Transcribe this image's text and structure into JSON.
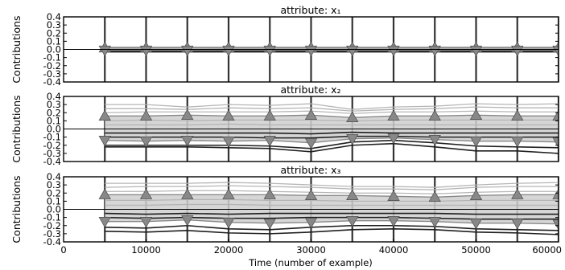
{
  "chart_data": {
    "type": "line",
    "xlabel": "Time (number of example)",
    "x_ticks": [
      0,
      10000,
      20000,
      30000,
      40000,
      50000,
      60000
    ],
    "xlim": [
      0,
      60000
    ],
    "y_ticks": [
      "0.4",
      "0.3",
      "0.2",
      "0.1",
      "0.0",
      "-0.1",
      "-0.2",
      "-0.3",
      "-0.4"
    ],
    "ylim": [
      -0.4,
      0.4
    ],
    "vertical_lines_x": [
      5000,
      10000,
      15000,
      20000,
      25000,
      30000,
      35000,
      40000,
      45000,
      50000,
      55000,
      60000
    ],
    "x": [
      5000,
      10000,
      15000,
      20000,
      25000,
      30000,
      35000,
      40000,
      45000,
      50000,
      55000,
      60000
    ],
    "grid": false,
    "panels": [
      {
        "title": "attribute: x₁",
        "ylabel": "Contributions",
        "series": [
          {
            "role": "gray",
            "values": [
              0.03,
              0.03,
              0.03,
              0.03,
              0.03,
              0.03,
              0.03,
              0.03,
              0.03,
              0.03,
              0.03,
              0.03
            ]
          },
          {
            "role": "gray",
            "values": [
              0.02,
              0.02,
              0.02,
              0.02,
              0.02,
              0.02,
              0.02,
              0.02,
              0.02,
              0.02,
              0.02,
              0.02
            ]
          },
          {
            "role": "gray",
            "values": [
              0.01,
              0.01,
              0.015,
              0.01,
              0.01,
              0.01,
              0.01,
              0.01,
              0.01,
              0.01,
              0.01,
              0.01
            ]
          },
          {
            "role": "gray",
            "values": [
              -0.01,
              -0.01,
              -0.01,
              -0.01,
              -0.01,
              -0.01,
              -0.01,
              -0.01,
              -0.01,
              -0.01,
              -0.01,
              -0.01
            ]
          },
          {
            "role": "gray",
            "values": [
              -0.02,
              -0.02,
              -0.02,
              -0.02,
              -0.02,
              -0.02,
              -0.02,
              -0.02,
              -0.02,
              -0.02,
              -0.02,
              -0.02
            ]
          },
          {
            "role": "dark",
            "values": [
              -0.03,
              -0.03,
              -0.03,
              -0.03,
              -0.03,
              -0.03,
              -0.03,
              -0.03,
              -0.03,
              -0.03,
              -0.03,
              -0.03
            ]
          },
          {
            "role": "dark",
            "values": [
              -0.02,
              -0.02,
              -0.02,
              -0.02,
              -0.02,
              -0.02,
              -0.02,
              -0.02,
              -0.02,
              -0.02,
              -0.02,
              -0.02
            ]
          }
        ],
        "band_upper": {
          "values": [
            0.02,
            0.02,
            0.02,
            0.02,
            0.02,
            0.02,
            0.02,
            0.02,
            0.02,
            0.02,
            0.02,
            0.02
          ],
          "marker": "up"
        },
        "band_lower": {
          "values": [
            -0.01,
            -0.01,
            -0.01,
            -0.01,
            -0.01,
            -0.01,
            -0.01,
            -0.01,
            -0.01,
            -0.01,
            -0.01,
            -0.01
          ],
          "marker": "down"
        }
      },
      {
        "title": "attribute: x₂",
        "ylabel": "Contributions",
        "series": [
          {
            "role": "gray",
            "values": [
              0.3,
              0.3,
              0.27,
              0.3,
              0.29,
              0.31,
              0.24,
              0.27,
              0.28,
              0.31,
              0.3,
              0.31
            ]
          },
          {
            "role": "gray",
            "values": [
              0.25,
              0.25,
              0.24,
              0.26,
              0.25,
              0.26,
              0.22,
              0.24,
              0.25,
              0.27,
              0.26,
              0.26
            ]
          },
          {
            "role": "gray",
            "values": [
              0.2,
              0.21,
              0.21,
              0.21,
              0.21,
              0.22,
              0.19,
              0.21,
              0.21,
              0.22,
              0.21,
              0.21
            ]
          },
          {
            "role": "gray",
            "values": [
              0.1,
              0.11,
              0.1,
              0.11,
              0.11,
              0.11,
              0.1,
              0.11,
              0.11,
              0.11,
              0.11,
              0.11
            ]
          },
          {
            "role": "gray",
            "values": [
              0.05,
              0.05,
              0.05,
              0.06,
              0.05,
              0.05,
              0.05,
              0.05,
              0.05,
              0.05,
              0.05,
              0.05
            ]
          },
          {
            "role": "dark",
            "values": [
              -0.05,
              -0.05,
              -0.05,
              -0.05,
              -0.05,
              -0.06,
              -0.04,
              -0.05,
              -0.05,
              -0.05,
              -0.05,
              -0.05
            ]
          },
          {
            "role": "dark",
            "values": [
              -0.1,
              -0.1,
              -0.1,
              -0.1,
              -0.11,
              -0.11,
              -0.09,
              -0.09,
              -0.1,
              -0.1,
              -0.1,
              -0.1
            ]
          },
          {
            "role": "dark",
            "values": [
              -0.2,
              -0.2,
              -0.2,
              -0.2,
              -0.21,
              -0.24,
              -0.16,
              -0.14,
              -0.17,
              -0.21,
              -0.22,
              -0.23
            ]
          },
          {
            "role": "dark",
            "values": [
              -0.22,
              -0.22,
              -0.22,
              -0.23,
              -0.24,
              -0.28,
              -0.2,
              -0.18,
              -0.22,
              -0.27,
              -0.27,
              -0.3
            ]
          }
        ],
        "band_upper": {
          "values": [
            0.16,
            0.16,
            0.17,
            0.16,
            0.16,
            0.17,
            0.14,
            0.16,
            0.16,
            0.17,
            0.16,
            0.16
          ],
          "marker": "up"
        },
        "band_lower": {
          "values": [
            -0.14,
            -0.15,
            -0.14,
            -0.15,
            -0.14,
            -0.17,
            -0.12,
            -0.11,
            -0.13,
            -0.15,
            -0.15,
            -0.16
          ],
          "marker": "down"
        }
      },
      {
        "title": "attribute: x₃",
        "ylabel": "Contributions",
        "series": [
          {
            "role": "gray",
            "values": [
              0.32,
              0.32,
              0.32,
              0.33,
              0.32,
              0.3,
              0.28,
              0.28,
              0.27,
              0.3,
              0.32,
              0.33
            ]
          },
          {
            "role": "gray",
            "values": [
              0.27,
              0.28,
              0.28,
              0.29,
              0.28,
              0.27,
              0.25,
              0.25,
              0.24,
              0.27,
              0.28,
              0.28
            ]
          },
          {
            "role": "gray",
            "values": [
              0.22,
              0.22,
              0.23,
              0.23,
              0.22,
              0.21,
              0.2,
              0.2,
              0.19,
              0.21,
              0.22,
              0.22
            ]
          },
          {
            "role": "gray",
            "values": [
              0.11,
              0.11,
              0.12,
              0.12,
              0.11,
              0.11,
              0.1,
              0.1,
              0.1,
              0.11,
              0.11,
              0.11
            ]
          },
          {
            "role": "gray",
            "values": [
              0.05,
              0.05,
              0.06,
              0.06,
              0.05,
              0.05,
              0.05,
              0.05,
              0.05,
              0.05,
              0.05,
              0.05
            ]
          },
          {
            "role": "dark",
            "values": [
              -0.05,
              -0.06,
              -0.05,
              -0.06,
              -0.05,
              -0.05,
              -0.05,
              -0.05,
              -0.05,
              -0.06,
              -0.06,
              -0.06
            ]
          },
          {
            "role": "dark",
            "values": [
              -0.1,
              -0.11,
              -0.1,
              -0.11,
              -0.11,
              -0.1,
              -0.1,
              -0.1,
              -0.11,
              -0.12,
              -0.12,
              -0.12
            ]
          },
          {
            "role": "dark",
            "values": [
              -0.22,
              -0.23,
              -0.2,
              -0.24,
              -0.25,
              -0.22,
              -0.2,
              -0.2,
              -0.21,
              -0.24,
              -0.25,
              -0.26
            ]
          },
          {
            "role": "dark",
            "values": [
              -0.27,
              -0.28,
              -0.26,
              -0.29,
              -0.3,
              -0.28,
              -0.25,
              -0.24,
              -0.25,
              -0.28,
              -0.29,
              -0.31
            ]
          }
        ],
        "band_upper": {
          "values": [
            0.18,
            0.18,
            0.18,
            0.18,
            0.18,
            0.17,
            0.17,
            0.16,
            0.15,
            0.17,
            0.18,
            0.18
          ],
          "marker": "up"
        },
        "band_lower": {
          "values": [
            -0.15,
            -0.15,
            -0.13,
            -0.16,
            -0.17,
            -0.16,
            -0.14,
            -0.14,
            -0.15,
            -0.17,
            -0.17,
            -0.18
          ],
          "marker": "down"
        }
      }
    ]
  },
  "colors": {
    "frame": "#000000",
    "vertical_line": "#333333",
    "gray_line": "#b5b5b5",
    "dark_line": "#1f1f1f",
    "band_fill": "#cfcfcf",
    "marker_fill": "#888888",
    "zero_line": "#000000"
  }
}
